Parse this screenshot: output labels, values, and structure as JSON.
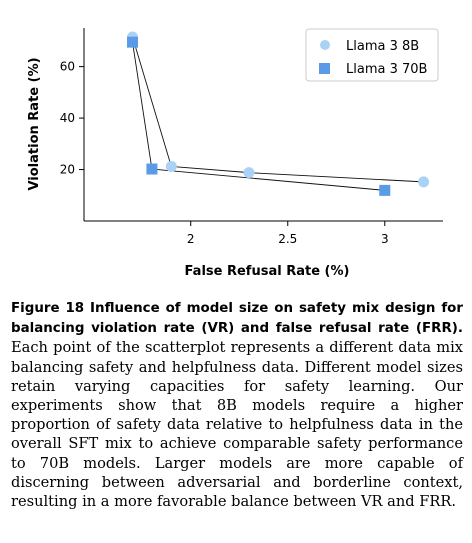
{
  "chart_data": {
    "type": "scatter",
    "xlabel": "False Refusal Rate (%)",
    "ylabel": "Violation Rate (%)",
    "xlim": [
      1.45,
      3.3
    ],
    "ylim": [
      0,
      75
    ],
    "xticks": [
      "2",
      "2.5",
      "3"
    ],
    "xtick_values": [
      2,
      2.5,
      3
    ],
    "yticks": [
      "20",
      "40",
      "60"
    ],
    "ytick_values": [
      20,
      40,
      60
    ],
    "grid": false,
    "legend_position": "top-right",
    "series": [
      {
        "name": "Llama 3 8B",
        "marker": "circle",
        "color": "#a9d2f5",
        "points": [
          [
            1.7,
            71.5
          ],
          [
            1.9,
            21.2
          ],
          [
            2.3,
            18.8
          ],
          [
            3.2,
            15.2
          ]
        ],
        "connect": [
          [
            0,
            1
          ],
          [
            1,
            2
          ],
          [
            2,
            3
          ]
        ]
      },
      {
        "name": "Llama 3 70B",
        "marker": "square",
        "color": "#5a9be8",
        "points": [
          [
            1.7,
            69.5
          ],
          [
            1.8,
            20.2
          ],
          [
            3.0,
            11.9
          ]
        ],
        "connect": [
          [
            0,
            1
          ],
          [
            1,
            2
          ]
        ]
      }
    ]
  },
  "caption": {
    "heading": "Figure 18  Influence of model size on safety mix design for balancing violation rate (VR) and false refusal rate (FRR).",
    "body": " Each point of the scatterplot represents a different data mix balancing safety and helpfulness data. Different model sizes retain varying capacities for safety learning. Our experiments show that 8B models require a higher proportion of safety data relative to helpfulness data in the overall SFT mix to achieve comparable safety performance to 70B models. Larger models are more capable of discerning between adversarial and borderline context, resulting in a more favorable balance between VR and FRR."
  }
}
